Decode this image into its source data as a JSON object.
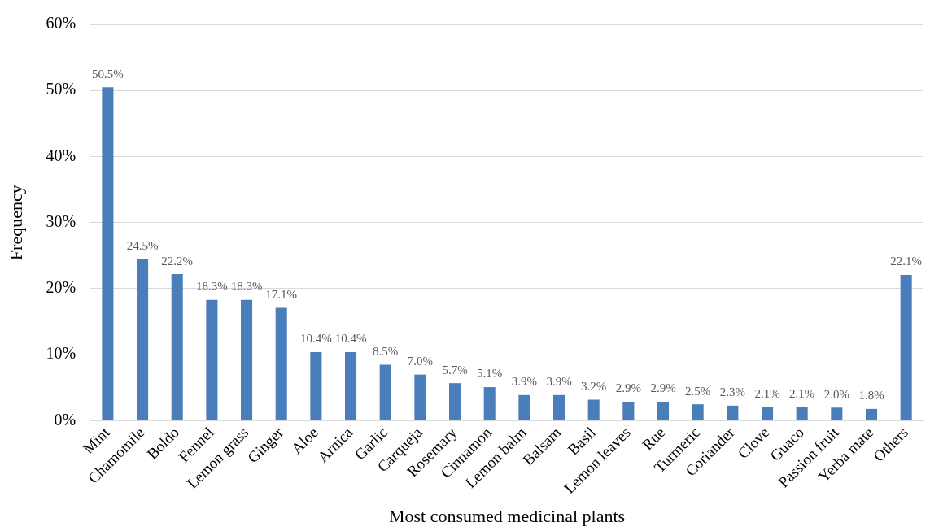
{
  "chart_data": {
    "type": "bar",
    "xlabel": "Most consumed medicinal plants",
    "ylabel": "Frequency",
    "categories": [
      "Mint",
      "Chamomile",
      "Boldo",
      "Fennel",
      "Lemon grass",
      "Ginger",
      "Aloe",
      "Arnica",
      "Garlic",
      "Carqueja",
      "Rosemary",
      "Cinnamon",
      "Lemon balm",
      "Balsam",
      "Basil",
      "Lemon leaves",
      "Rue",
      "Turmeric",
      "Coriander",
      "Clove",
      "Guaco",
      "Passion fruit",
      "Yerba mate",
      "Others"
    ],
    "values": [
      50.5,
      24.5,
      22.2,
      18.3,
      18.3,
      17.1,
      10.4,
      10.4,
      8.5,
      7.0,
      5.7,
      5.1,
      3.9,
      3.9,
      3.2,
      2.9,
      2.9,
      2.5,
      2.3,
      2.1,
      2.1,
      2.0,
      1.8,
      22.1
    ],
    "value_labels": [
      "50.5%",
      "24.5%",
      "22.2%",
      "18.3%",
      "18.3%",
      "17.1%",
      "10.4%",
      "10.4%",
      "8.5%",
      "7.0%",
      "5.7%",
      "5.1%",
      "3.9%",
      "3.9%",
      "3.2%",
      "2.9%",
      "2.9%",
      "2.5%",
      "2.3%",
      "2.1%",
      "2.1%",
      "2.0%",
      "1.8%",
      "22.1%"
    ],
    "color": "#4a7ebb",
    "ylim": [
      0,
      60
    ],
    "yticks": [
      {
        "value": 0,
        "label": "0%"
      },
      {
        "value": 10,
        "label": "10%"
      },
      {
        "value": 20,
        "label": "20%"
      },
      {
        "value": 30,
        "label": "30%"
      },
      {
        "value": 40,
        "label": "40%"
      },
      {
        "value": 50,
        "label": "50%"
      },
      {
        "value": 60,
        "label": "60%"
      }
    ],
    "grid": "y",
    "legend": false
  }
}
